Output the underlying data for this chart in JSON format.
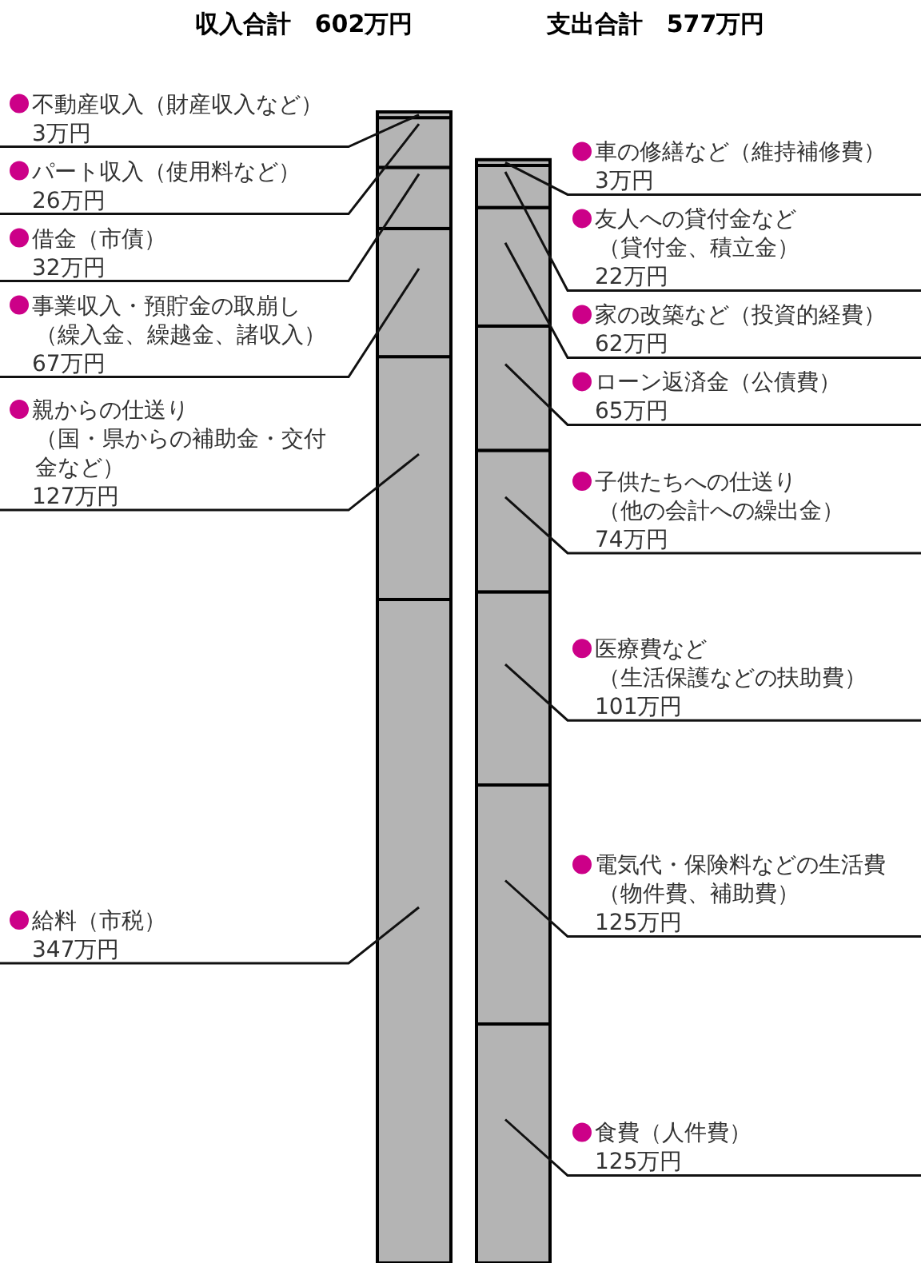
{
  "chart_data": [
    {
      "type": "bar",
      "stacked": true,
      "title": "収入合計　602万円",
      "categories": [
        null
      ],
      "series": [
        {
          "name": "給料（市税）",
          "color": "#b4b4b4",
          "values": [
            347
          ],
          "value_labels": [
            "347万円"
          ]
        },
        {
          "name": "親からの仕送り（国・県からの補助金・交付金など）",
          "color": "#b4b4b4",
          "values": [
            127
          ],
          "value_labels": [
            "127万円"
          ]
        },
        {
          "name": "事業収入・預貯金の取崩し（繰入金、繰越金、諸収入）",
          "color": "#b4b4b4",
          "values": [
            67
          ],
          "value_labels": [
            "67万円"
          ]
        },
        {
          "name": "借金（市債）",
          "color": "#b4b4b4",
          "values": [
            32
          ],
          "value_labels": [
            "32万円"
          ]
        },
        {
          "name": "パート収入（使用料など）",
          "color": "#b4b4b4",
          "values": [
            26
          ],
          "value_labels": [
            "26万円"
          ]
        },
        {
          "name": "不動産収入（財産収入など）",
          "color": "#b4b4b4",
          "values": [
            3
          ],
          "value_labels": [
            "3万円"
          ]
        }
      ]
    },
    {
      "type": "bar",
      "stacked": true,
      "title": "支出合計　577万円",
      "categories": [
        null
      ],
      "series": [
        {
          "name": "食費（人件費）",
          "color": "#b4b4b4",
          "values": [
            125
          ],
          "value_labels": [
            "125万円"
          ]
        },
        {
          "name": "電気代・保険料などの生活費（物件費、補助費）",
          "color": "#b4b4b4",
          "values": [
            125
          ],
          "value_labels": [
            "125万円"
          ]
        },
        {
          "name": "医療費など（生活保護などの扶助費）",
          "color": "#b4b4b4",
          "values": [
            101
          ],
          "value_labels": [
            "101万円"
          ]
        },
        {
          "name": "子供たちへの仕送り（他の会計への繰出金）",
          "color": "#b4b4b4",
          "values": [
            74
          ],
          "value_labels": [
            "74万円"
          ]
        },
        {
          "name": "ローン返済金（公債費）",
          "color": "#b4b4b4",
          "values": [
            65
          ],
          "value_labels": [
            "65万円"
          ]
        },
        {
          "name": "家の改築など（投資的経費）",
          "color": "#b4b4b4",
          "values": [
            62
          ],
          "value_labels": [
            "62万円"
          ]
        },
        {
          "name": "友人への貸付金など（貸付金、積立金）",
          "color": "#b4b4b4",
          "values": [
            22
          ],
          "value_labels": [
            "22万円"
          ]
        },
        {
          "name": "車の修繕など（維持補修費）",
          "color": "#b4b4b4",
          "values": [
            3
          ],
          "value_labels": [
            "3万円"
          ]
        }
      ]
    }
  ]
}
